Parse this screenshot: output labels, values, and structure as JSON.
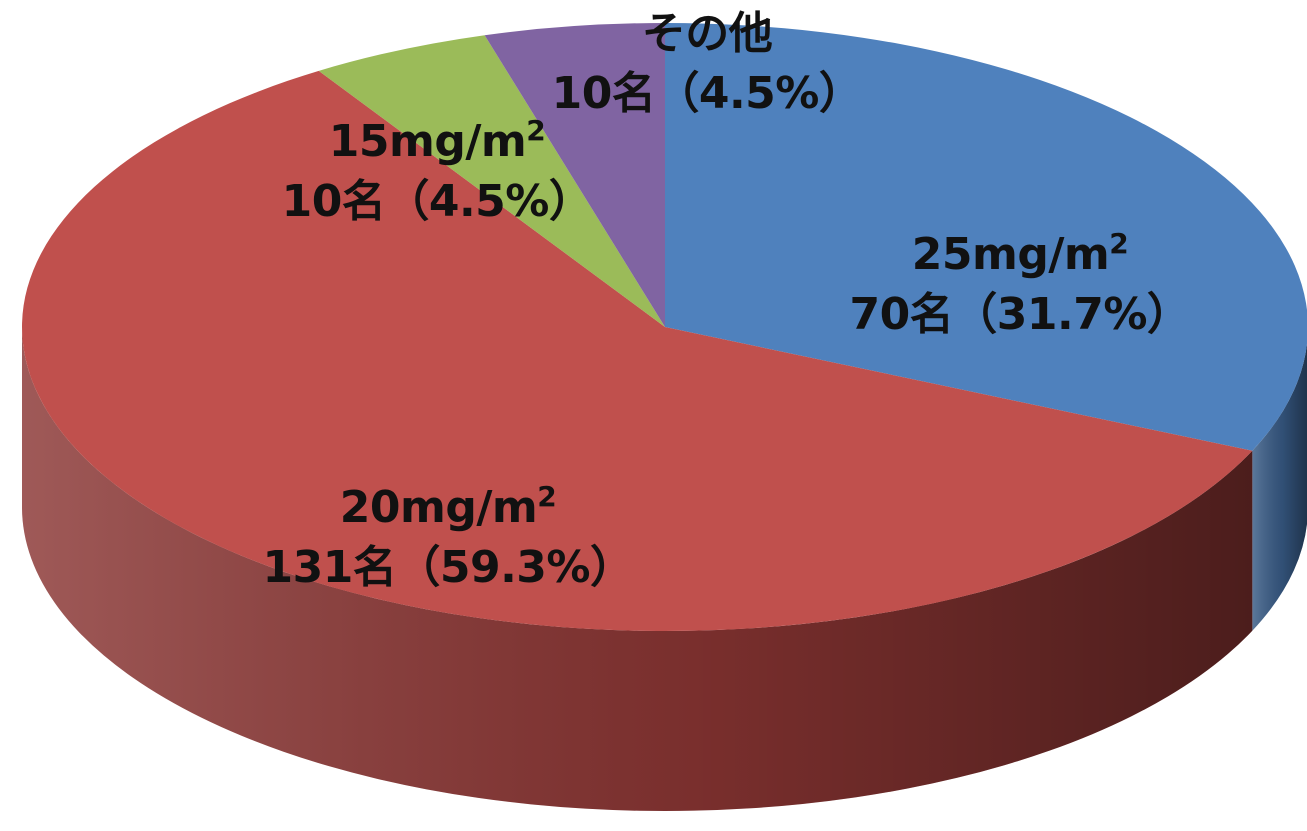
{
  "chart_data": {
    "type": "pie",
    "style": "3d",
    "start_angle_deg": 0,
    "direction": "clockwise",
    "slices": [
      {
        "name": "25mg/m",
        "name_sup": "2",
        "count_text": "70名（31.7%）",
        "value": 70,
        "percent": 31.7,
        "color": "#4f81bd",
        "side_color": "#375a85"
      },
      {
        "name": "20mg/m",
        "name_sup": "2",
        "count_text": "131名（59.3%）",
        "value": 131,
        "percent": 59.3,
        "color": "#c0504d",
        "side_color": "#8a3533"
      },
      {
        "name": "15mg/m",
        "name_sup": "2",
        "count_text": "10名（4.5%）",
        "value": 10,
        "percent": 4.5,
        "color": "#9bbb59",
        "side_color": "#6f8a3e"
      },
      {
        "name": "その他",
        "name_sup": "",
        "count_text": "10名（4.5%）",
        "value": 10,
        "percent": 4.5,
        "color": "#8064a2",
        "side_color": "#5b4875"
      }
    ]
  }
}
